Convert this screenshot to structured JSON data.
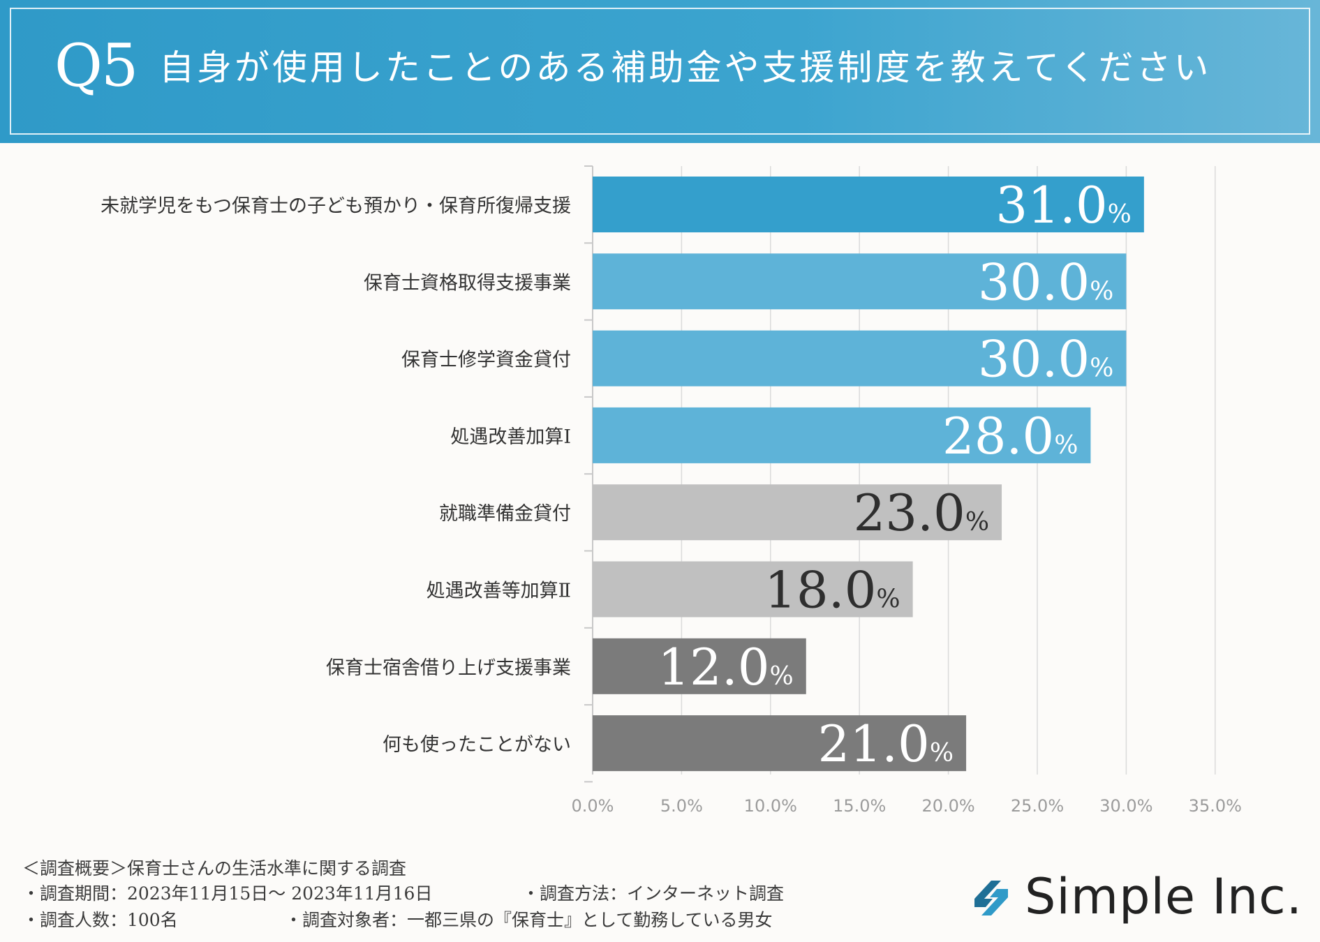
{
  "header": {
    "q_number": "Q5",
    "title": "自身が使用したことのある補助金や支援制度を教えてください"
  },
  "chart_data": {
    "type": "bar",
    "orientation": "horizontal",
    "categories": [
      "未就学児をもつ保育士の子ども預かり・保育所復帰支援",
      "保育士資格取得支援事業",
      "保育士修学資金貸付",
      "処遇改善加算Ⅰ",
      "就職準備金貸付",
      "処遇改善等加算Ⅱ",
      "保育士宿舎借り上げ支援事業",
      "何も使ったことがない"
    ],
    "values": [
      31.0,
      30.0,
      30.0,
      28.0,
      23.0,
      18.0,
      12.0,
      21.0
    ],
    "value_labels": [
      "31.0",
      "30.0",
      "30.0",
      "28.0",
      "23.0",
      "18.0",
      "12.0",
      "21.0"
    ],
    "value_unit": "%",
    "bar_colors": [
      "#349fcc",
      "#5eb3d8",
      "#5eb3d8",
      "#5eb3d8",
      "#c0c0c0",
      "#c0c0c0",
      "#7b7b7b",
      "#7b7b7b"
    ],
    "label_colors": [
      "#ffffff",
      "#ffffff",
      "#ffffff",
      "#ffffff",
      "#2e2e2e",
      "#2e2e2e",
      "#ffffff",
      "#ffffff"
    ],
    "x_ticks": [
      "0.0%",
      "5.0%",
      "10.0%",
      "15.0%",
      "20.0%",
      "25.0%",
      "30.0%",
      "35.0%"
    ],
    "xlim": [
      0,
      35
    ],
    "grid": true,
    "title": "",
    "xlabel": "",
    "ylabel": ""
  },
  "footer": {
    "summary": "＜調査概要＞保育士さんの生活水準に関する調査",
    "period": "・調査期間：2023年11月15日～ 2023年11月16日",
    "method": "・調査方法：インターネット調査",
    "count": "・調査人数：100名",
    "target": "・調査対象者：一都三県の『保育士』として勤務している男女"
  },
  "brand": {
    "name": "Simple Inc.",
    "logo_icon": "simple-logo-icon",
    "logo_colors": [
      "#1f6f96",
      "#2f9ac8"
    ]
  }
}
